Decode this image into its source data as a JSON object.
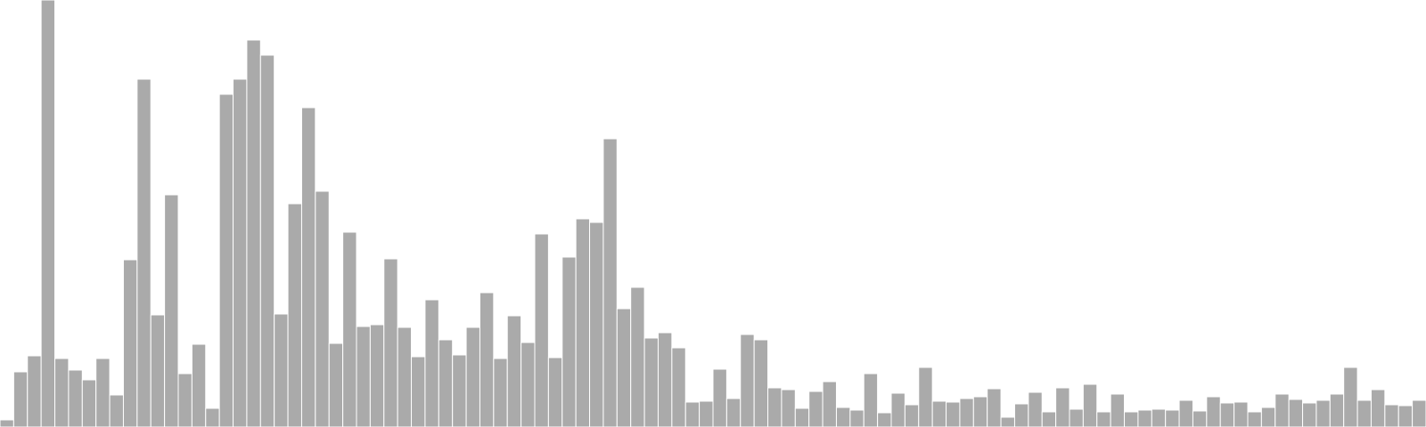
{
  "chart_data": {
    "type": "bar",
    "title": "",
    "xlabel": "",
    "ylabel": "",
    "ylim": [
      0,
      480
    ],
    "grid": false,
    "legend": "none",
    "bar_color": "#aaaaaa",
    "values": [
      8,
      62,
      80,
      480,
      77,
      64,
      53,
      77,
      36,
      188,
      391,
      126,
      261,
      60,
      93,
      21,
      374,
      391,
      435,
      418,
      127,
      251,
      359,
      265,
      94,
      219,
      113,
      115,
      189,
      112,
      79,
      143,
      98,
      81,
      112,
      151,
      77,
      125,
      95,
      217,
      78,
      191,
      234,
      230,
      324,
      133,
      157,
      100,
      106,
      89,
      28,
      29,
      65,
      32,
      104,
      98,
      44,
      42,
      21,
      40,
      51,
      22,
      19,
      60,
      16,
      38,
      25,
      67,
      29,
      28,
      32,
      34,
      43,
      11,
      26,
      39,
      17,
      44,
      20,
      48,
      17,
      37,
      17,
      19,
      20,
      19,
      30,
      18,
      34,
      27,
      28,
      17,
      22,
      37,
      31,
      27,
      30,
      37,
      67,
      30,
      42,
      25,
      24,
      30
    ]
  }
}
